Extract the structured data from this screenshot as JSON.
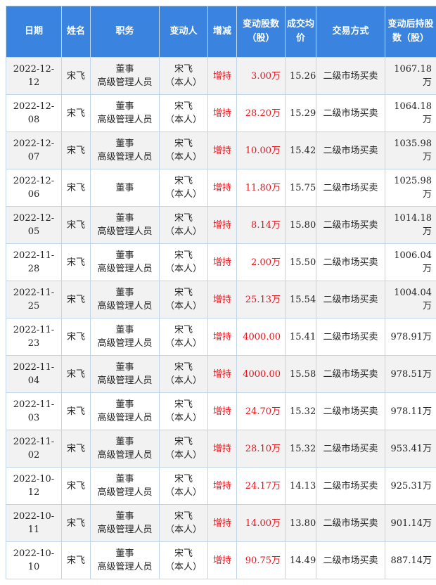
{
  "headers": [
    "日期",
    "姓名",
    "职务",
    "变动人",
    "增减",
    "变动股数（股）",
    "成交均价",
    "交易方式",
    "变动后持股数（股）"
  ],
  "colors": {
    "header_bg": "#3a84e0",
    "increase": "#e8141c",
    "stripe": "#f2f2f2"
  },
  "rows": [
    {
      "date": "2022-12-12",
      "name": "宋飞",
      "role1": "董事",
      "role2": "高级管理人员",
      "person1": "宋飞",
      "person2": "（本人）",
      "change": "增持",
      "shares": "3.00万",
      "price": "15.26",
      "method": "二级市场买卖",
      "after": "1067.18万"
    },
    {
      "date": "2022-12-08",
      "name": "宋飞",
      "role1": "董事",
      "role2": "高级管理人员",
      "person1": "宋飞",
      "person2": "（本人）",
      "change": "增持",
      "shares": "28.20万",
      "price": "15.29",
      "method": "二级市场买卖",
      "after": "1064.18万"
    },
    {
      "date": "2022-12-07",
      "name": "宋飞",
      "role1": "董事",
      "role2": "高级管理人员",
      "person1": "宋飞",
      "person2": "（本人）",
      "change": "增持",
      "shares": "10.00万",
      "price": "15.42",
      "method": "二级市场买卖",
      "after": "1035.98万"
    },
    {
      "date": "2022-12-06",
      "name": "宋飞",
      "role1": "董事",
      "role2": "",
      "person1": "宋飞",
      "person2": "（本人）",
      "change": "增持",
      "shares": "11.80万",
      "price": "15.75",
      "method": "二级市场买卖",
      "after": "1025.98万"
    },
    {
      "date": "2022-12-05",
      "name": "宋飞",
      "role1": "董事",
      "role2": "高级管理人员",
      "person1": "宋飞",
      "person2": "（本人）",
      "change": "增持",
      "shares": "8.14万",
      "price": "15.80",
      "method": "二级市场买卖",
      "after": "1014.18万"
    },
    {
      "date": "2022-11-28",
      "name": "宋飞",
      "role1": "董事",
      "role2": "高级管理人员",
      "person1": "宋飞",
      "person2": "（本人）",
      "change": "增持",
      "shares": "2.00万",
      "price": "15.50",
      "method": "二级市场买卖",
      "after": "1006.04万"
    },
    {
      "date": "2022-11-25",
      "name": "宋飞",
      "role1": "董事",
      "role2": "高级管理人员",
      "person1": "宋飞",
      "person2": "（本人）",
      "change": "增持",
      "shares": "25.13万",
      "price": "15.54",
      "method": "二级市场买卖",
      "after": "1004.04万"
    },
    {
      "date": "2022-11-23",
      "name": "宋飞",
      "role1": "董事",
      "role2": "高级管理人员",
      "person1": "宋飞",
      "person2": "（本人）",
      "change": "增持",
      "shares": "4000.00",
      "price": "15.41",
      "method": "二级市场买卖",
      "after": "978.91万"
    },
    {
      "date": "2022-11-04",
      "name": "宋飞",
      "role1": "董事",
      "role2": "高级管理人员",
      "person1": "宋飞",
      "person2": "（本人）",
      "change": "增持",
      "shares": "4000.00",
      "price": "15.58",
      "method": "二级市场买卖",
      "after": "978.51万"
    },
    {
      "date": "2022-11-03",
      "name": "宋飞",
      "role1": "董事",
      "role2": "高级管理人员",
      "person1": "宋飞",
      "person2": "（本人）",
      "change": "增持",
      "shares": "24.70万",
      "price": "15.32",
      "method": "二级市场买卖",
      "after": "978.11万"
    },
    {
      "date": "2022-11-02",
      "name": "宋飞",
      "role1": "董事",
      "role2": "高级管理人员",
      "person1": "宋飞",
      "person2": "（本人）",
      "change": "增持",
      "shares": "28.10万",
      "price": "15.32",
      "method": "二级市场买卖",
      "after": "953.41万"
    },
    {
      "date": "2022-10-12",
      "name": "宋飞",
      "role1": "董事",
      "role2": "高级管理人员",
      "person1": "宋飞",
      "person2": "（本人）",
      "change": "增持",
      "shares": "24.17万",
      "price": "14.13",
      "method": "二级市场买卖",
      "after": "925.31万"
    },
    {
      "date": "2022-10-11",
      "name": "宋飞",
      "role1": "董事",
      "role2": "高级管理人员",
      "person1": "宋飞",
      "person2": "（本人）",
      "change": "增持",
      "shares": "14.00万",
      "price": "13.80",
      "method": "二级市场买卖",
      "after": "901.14万"
    },
    {
      "date": "2022-10-10",
      "name": "宋飞",
      "role1": "董事",
      "role2": "高级管理人员",
      "person1": "宋飞",
      "person2": "（本人）",
      "change": "增持",
      "shares": "90.75万",
      "price": "14.49",
      "method": "二级市场买卖",
      "after": "887.14万"
    }
  ]
}
